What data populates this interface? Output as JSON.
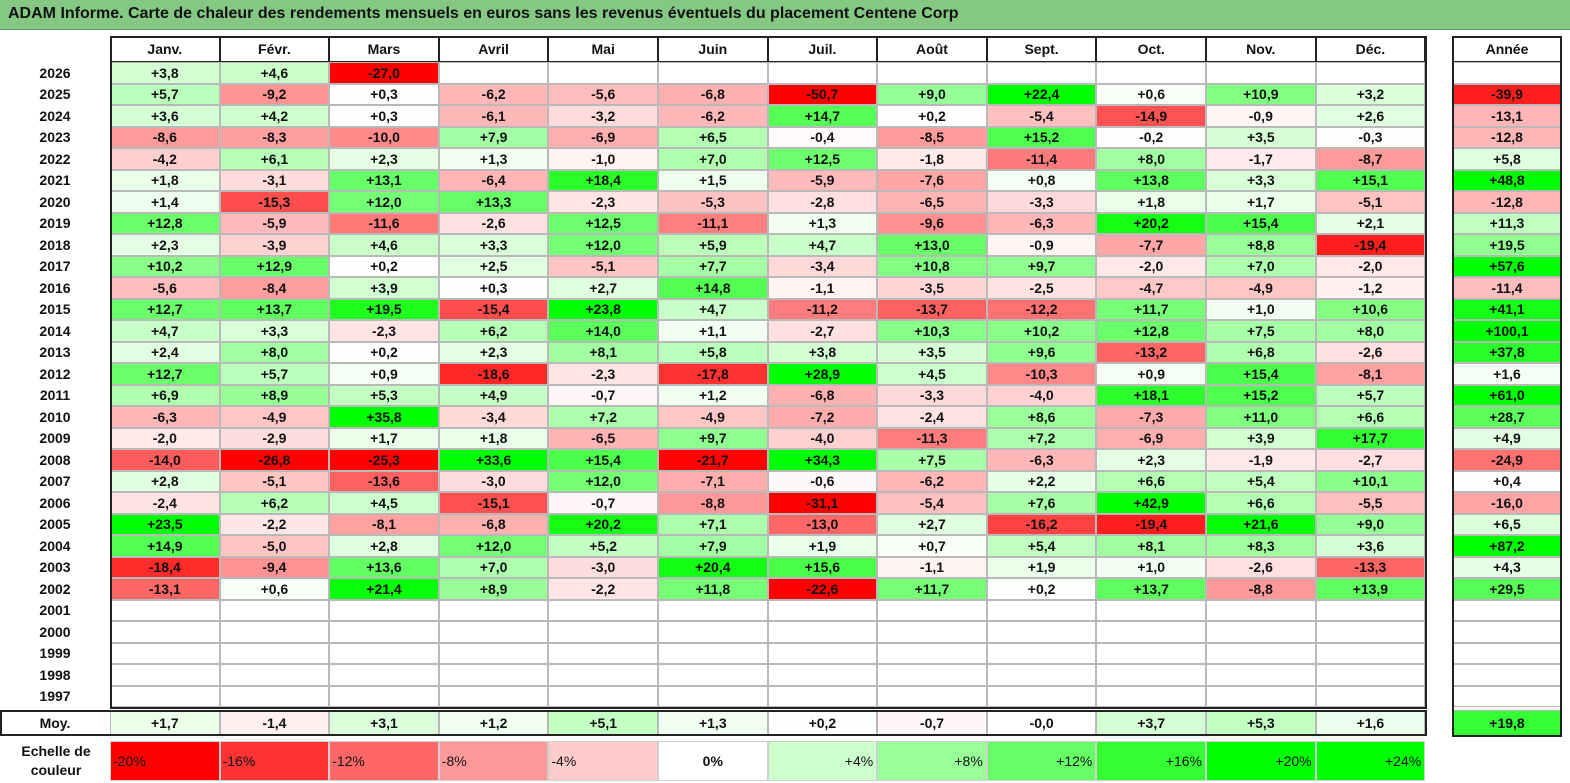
{
  "title": "ADAM Informe. Carte de chaleur des rendements mensuels en euros sans les revenus éventuels du placement Centene Corp",
  "months": [
    "Janv.",
    "Févr.",
    "Mars",
    "Avril",
    "Mai",
    "Juin",
    "Juil.",
    "Août",
    "Sept.",
    "Oct.",
    "Nov.",
    "Déc."
  ],
  "year_header": "Année",
  "avg_label": "Moy.",
  "scale_label": "Echelle de couleur",
  "chart_data": {
    "type": "heatmap",
    "title": "ADAM Informe. Carte de chaleur des rendements mensuels en euros sans les revenus éventuels du placement Centene Corp",
    "x": [
      "Janv.",
      "Févr.",
      "Mars",
      "Avril",
      "Mai",
      "Juin",
      "Juil.",
      "Août",
      "Sept.",
      "Oct.",
      "Nov.",
      "Déc."
    ],
    "rows": [
      {
        "year": "2026",
        "values": [
          "+3,8",
          "+4,6",
          "-27,0",
          "",
          "",
          "",
          "",
          "",
          "",
          "",
          "",
          ""
        ],
        "annual": ""
      },
      {
        "year": "2025",
        "values": [
          "+5,7",
          "-9,2",
          "+0,3",
          "-6,2",
          "-5,6",
          "-6,8",
          "-50,7",
          "+9,0",
          "+22,4",
          "+0,6",
          "+10,9",
          "+3,2"
        ],
        "annual": "-39,9"
      },
      {
        "year": "2024",
        "values": [
          "+3,6",
          "+4,2",
          "+0,3",
          "-6,1",
          "-3,2",
          "-6,2",
          "+14,7",
          "+0,2",
          "-5,4",
          "-14,9",
          "-0,9",
          "+2,6"
        ],
        "annual": "-13,1"
      },
      {
        "year": "2023",
        "values": [
          "-8,6",
          "-8,3",
          "-10,0",
          "+7,9",
          "-6,9",
          "+6,5",
          "-0,4",
          "-8,5",
          "+15,2",
          "-0,2",
          "+3,5",
          "-0,3"
        ],
        "annual": "-12,8"
      },
      {
        "year": "2022",
        "values": [
          "-4,2",
          "+6,1",
          "+2,3",
          "+1,3",
          "-1,0",
          "+7,0",
          "+12,5",
          "-1,8",
          "-11,4",
          "+8,0",
          "-1,7",
          "-8,7"
        ],
        "annual": "+5,8"
      },
      {
        "year": "2021",
        "values": [
          "+1,8",
          "-3,1",
          "+13,1",
          "-6,4",
          "+18,4",
          "+1,5",
          "-5,9",
          "-7,6",
          "+0,8",
          "+13,8",
          "+3,3",
          "+15,1"
        ],
        "annual": "+48,8"
      },
      {
        "year": "2020",
        "values": [
          "+1,4",
          "-15,3",
          "+12,0",
          "+13,3",
          "-2,3",
          "-5,3",
          "-2,8",
          "-6,5",
          "-3,3",
          "+1,8",
          "+1,7",
          "-5,1"
        ],
        "annual": "-12,8"
      },
      {
        "year": "2019",
        "values": [
          "+12,8",
          "-5,9",
          "-11,6",
          "-2,6",
          "+12,5",
          "-11,1",
          "+1,3",
          "-9,6",
          "-6,3",
          "+20,2",
          "+15,4",
          "+2,1"
        ],
        "annual": "+11,3"
      },
      {
        "year": "2018",
        "values": [
          "+2,3",
          "-3,9",
          "+4,6",
          "+3,3",
          "+12,0",
          "+5,9",
          "+4,7",
          "+13,0",
          "-0,9",
          "-7,7",
          "+8,8",
          "-19,4"
        ],
        "annual": "+19,5"
      },
      {
        "year": "2017",
        "values": [
          "+10,2",
          "+12,9",
          "+0,2",
          "+2,5",
          "-5,1",
          "+7,7",
          "-3,4",
          "+10,8",
          "+9,7",
          "-2,0",
          "+7,0",
          "-2,0"
        ],
        "annual": "+57,6"
      },
      {
        "year": "2016",
        "values": [
          "-5,6",
          "-8,4",
          "+3,9",
          "+0,3",
          "+2,7",
          "+14,8",
          "-1,1",
          "-3,5",
          "-2,5",
          "-4,7",
          "-4,9",
          "-1,2"
        ],
        "annual": "-11,4"
      },
      {
        "year": "2015",
        "values": [
          "+12,7",
          "+13,7",
          "+19,5",
          "-15,4",
          "+23,8",
          "+4,7",
          "-11,2",
          "-13,7",
          "-12,2",
          "+11,7",
          "+1,0",
          "+10,6"
        ],
        "annual": "+41,1"
      },
      {
        "year": "2014",
        "values": [
          "+4,7",
          "+3,3",
          "-2,3",
          "+6,2",
          "+14,0",
          "+1,1",
          "-2,7",
          "+10,3",
          "+10,2",
          "+12,8",
          "+7,5",
          "+8,0"
        ],
        "annual": "+100,1"
      },
      {
        "year": "2013",
        "values": [
          "+2,4",
          "+8,0",
          "+0,2",
          "+2,3",
          "+8,1",
          "+5,8",
          "+3,8",
          "+3,5",
          "+9,6",
          "-13,2",
          "+6,8",
          "-2,6"
        ],
        "annual": "+37,8"
      },
      {
        "year": "2012",
        "values": [
          "+12,7",
          "+5,7",
          "+0,9",
          "-18,6",
          "-2,3",
          "-17,8",
          "+28,9",
          "+4,5",
          "-10,3",
          "+0,9",
          "+15,4",
          "-8,1"
        ],
        "annual": "+1,6"
      },
      {
        "year": "2011",
        "values": [
          "+6,9",
          "+8,9",
          "+5,3",
          "+4,9",
          "-0,7",
          "+1,2",
          "-6,8",
          "-3,3",
          "-4,0",
          "+18,1",
          "+15,2",
          "+5,7"
        ],
        "annual": "+61,0"
      },
      {
        "year": "2010",
        "values": [
          "-6,3",
          "-4,9",
          "+35,8",
          "-3,4",
          "+7,2",
          "-4,9",
          "-7,2",
          "-2,4",
          "+8,6",
          "-7,3",
          "+11,0",
          "+6,6"
        ],
        "annual": "+28,7"
      },
      {
        "year": "2009",
        "values": [
          "-2,0",
          "-2,9",
          "+1,7",
          "+1,8",
          "-6,5",
          "+9,7",
          "-4,0",
          "-11,3",
          "+7,2",
          "-6,9",
          "+3,9",
          "+17,7"
        ],
        "annual": "+4,9"
      },
      {
        "year": "2008",
        "values": [
          "-14,0",
          "-26,8",
          "-25,3",
          "+33,6",
          "+15,4",
          "-21,7",
          "+34,3",
          "+7,5",
          "-6,3",
          "+2,3",
          "-1,9",
          "-2,7"
        ],
        "annual": "-24,9"
      },
      {
        "year": "2007",
        "values": [
          "+2,8",
          "-5,1",
          "-13,6",
          "-3,0",
          "+12,0",
          "-7,1",
          "-0,6",
          "-6,2",
          "+2,2",
          "+6,6",
          "+5,4",
          "+10,1"
        ],
        "annual": "+0,4"
      },
      {
        "year": "2006",
        "values": [
          "-2,4",
          "+6,2",
          "+4,5",
          "-15,1",
          "-0,7",
          "-8,8",
          "-31,1",
          "-5,4",
          "+7,6",
          "+42,9",
          "+6,6",
          "-5,5"
        ],
        "annual": "-16,0"
      },
      {
        "year": "2005",
        "values": [
          "+23,5",
          "-2,2",
          "-8,1",
          "-6,8",
          "+20,2",
          "+7,1",
          "-13,0",
          "+2,7",
          "-16,2",
          "-19,4",
          "+21,6",
          "+9,0"
        ],
        "annual": "+6,5"
      },
      {
        "year": "2004",
        "values": [
          "+14,9",
          "-5,0",
          "+2,8",
          "+12,0",
          "+5,2",
          "+7,9",
          "+1,9",
          "+0,7",
          "+5,4",
          "+8,1",
          "+8,3",
          "+3,6"
        ],
        "annual": "+87,2"
      },
      {
        "year": "2003",
        "values": [
          "-18,4",
          "-9,4",
          "+13,6",
          "+7,0",
          "-3,0",
          "+20,4",
          "+15,6",
          "-1,1",
          "+1,9",
          "+1,0",
          "-2,6",
          "-13,3"
        ],
        "annual": "+4,3"
      },
      {
        "year": "2002",
        "values": [
          "-13,1",
          "+0,6",
          "+21,4",
          "+8,9",
          "-2,2",
          "+11,8",
          "-22,6",
          "+11,7",
          "+0,2",
          "+13,7",
          "-8,8",
          "+13,9"
        ],
        "annual": "+29,5"
      },
      {
        "year": "2001",
        "values": [
          "",
          "",
          "",
          "",
          "",
          "",
          "",
          "",
          "",
          "",
          "",
          ""
        ],
        "annual": ""
      },
      {
        "year": "2000",
        "values": [
          "",
          "",
          "",
          "",
          "",
          "",
          "",
          "",
          "",
          "",
          "",
          ""
        ],
        "annual": ""
      },
      {
        "year": "1999",
        "values": [
          "",
          "",
          "",
          "",
          "",
          "",
          "",
          "",
          "",
          "",
          "",
          ""
        ],
        "annual": ""
      },
      {
        "year": "1998",
        "values": [
          "",
          "",
          "",
          "",
          "",
          "",
          "",
          "",
          "",
          "",
          "",
          ""
        ],
        "annual": ""
      },
      {
        "year": "1997",
        "values": [
          "",
          "",
          "",
          "",
          "",
          "",
          "",
          "",
          "",
          "",
          "",
          ""
        ],
        "annual": ""
      }
    ],
    "averages": [
      "+1,7",
      "-1,4",
      "+3,1",
      "+1,2",
      "+5,1",
      "+1,3",
      "+0,2",
      "-0,7",
      "-0,0",
      "+3,7",
      "+5,3",
      "+1,6"
    ],
    "average_annual": "+19,8",
    "color_scale": [
      {
        "label": "-20%",
        "value": -20
      },
      {
        "label": "-16%",
        "value": -16
      },
      {
        "label": "-12%",
        "value": -12
      },
      {
        "label": "-8%",
        "value": -8
      },
      {
        "label": "-4%",
        "value": -4
      },
      {
        "label": "0%",
        "value": 0
      },
      {
        "label": "+4%",
        "value": 4
      },
      {
        "label": "+8%",
        "value": 8
      },
      {
        "label": "+12%",
        "value": 12
      },
      {
        "label": "+16%",
        "value": 16
      },
      {
        "label": "+20%",
        "value": 20
      },
      {
        "label": "+24%",
        "value": 24
      }
    ],
    "colors": {
      "negative_max": "#ff0000",
      "neutral": "#ffffff",
      "positive_max": "#00ff00"
    }
  }
}
